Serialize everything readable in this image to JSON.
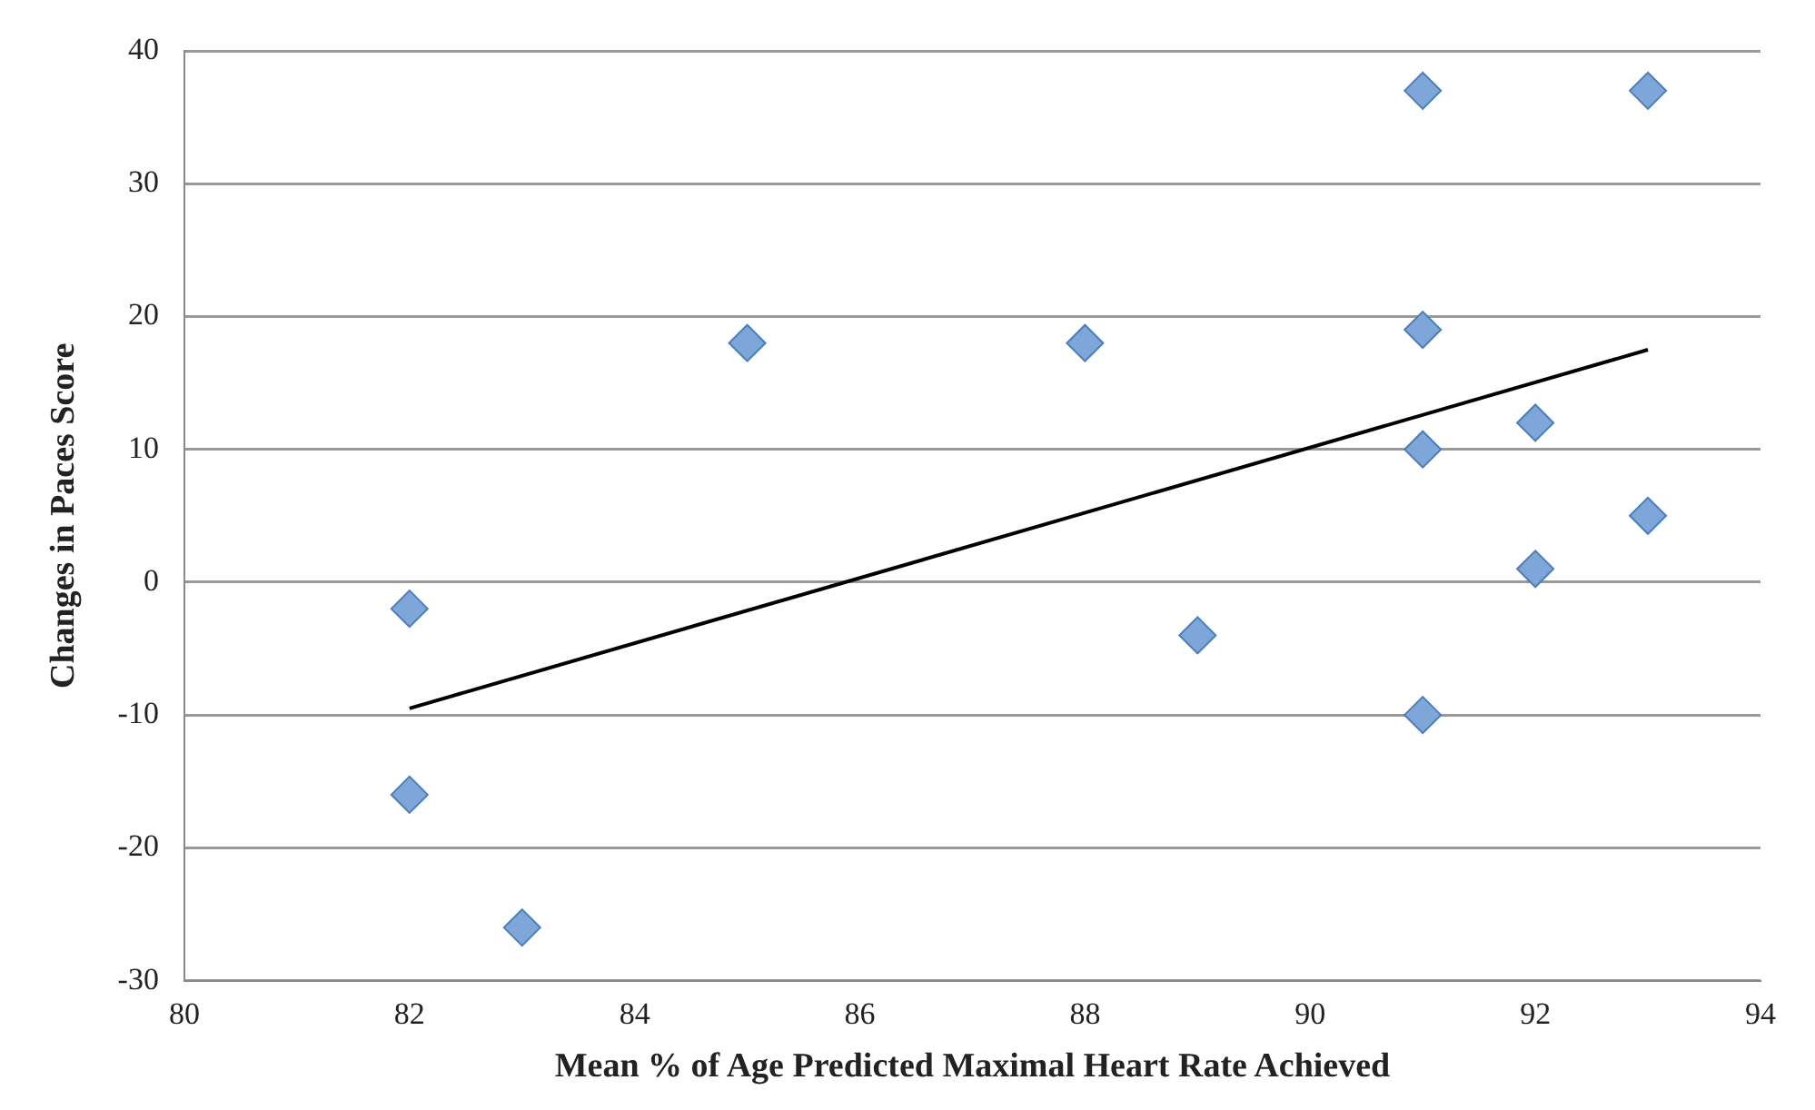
{
  "chart_data": {
    "type": "scatter",
    "xlabel": "Mean % of Age Predicted Maximal Heart Rate Achieved",
    "ylabel": "Changes in Paces Score",
    "x": [
      82,
      82,
      83,
      85,
      88,
      89,
      91,
      91,
      91,
      91,
      92,
      92,
      93,
      93
    ],
    "series": [
      {
        "color": "#7ea6d8",
        "marker": "diamond",
        "values": [
          -2,
          -16,
          -26,
          18,
          18,
          -4,
          37,
          19,
          10,
          -10,
          12,
          1,
          37,
          5
        ]
      },
      {
        "type": "line",
        "color": "#000000",
        "marker": "none",
        "x": [
          82,
          93
        ],
        "values": [
          -9.5,
          17.5
        ]
      }
    ],
    "xlim": [
      80,
      94
    ],
    "xticks": [
      80,
      82,
      84,
      86,
      88,
      90,
      92,
      94
    ],
    "ylim": [
      -30,
      40
    ],
    "yticks": [
      -30,
      -20,
      -10,
      0,
      10,
      20,
      30,
      40
    ],
    "grid": "y",
    "legend": false
  }
}
